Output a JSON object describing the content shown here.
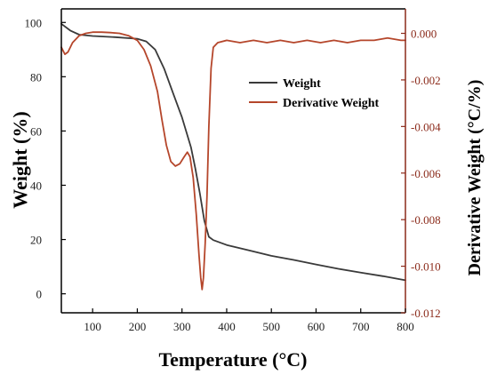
{
  "chart_data": {
    "type": "line",
    "title": "",
    "xlabel": "Temperature (°C)",
    "ylabel": "Weight (%)",
    "y2label": "Derivative Weight (°C/%)",
    "xlim": [
      30,
      800
    ],
    "ylim": [
      -7,
      105
    ],
    "y2lim": [
      -0.012,
      0.00105
    ],
    "x_ticks": [
      100,
      200,
      300,
      400,
      500,
      600,
      700,
      800
    ],
    "y_ticks": [
      0,
      20,
      40,
      60,
      80,
      100
    ],
    "y2_ticks": [
      0.0,
      -0.002,
      -0.004,
      -0.006,
      -0.008,
      -0.01,
      -0.012
    ],
    "y2_tick_labels": [
      "0.000",
      "-0.002",
      "-0.004",
      "-0.006",
      "-0.008",
      "-0.010",
      "-0.012"
    ],
    "legend_position": "center-right",
    "colors": {
      "weight": "#3a3a3a",
      "derivative": "#b5462b",
      "right_axis": "#8b2a1a",
      "axes": "#000000"
    },
    "series": [
      {
        "name": "Weight",
        "axis": "left",
        "x": [
          30,
          50,
          70,
          100,
          150,
          200,
          220,
          240,
          260,
          280,
          300,
          320,
          330,
          340,
          350,
          360,
          370,
          400,
          450,
          500,
          550,
          600,
          650,
          700,
          750,
          800
        ],
        "y": [
          99.5,
          97,
          95.5,
          95,
          94.6,
          94,
          93,
          90,
          83,
          74,
          65,
          54,
          46,
          37,
          27,
          21,
          19.8,
          18,
          16,
          14,
          12.5,
          10.8,
          9.2,
          7.8,
          6.5,
          5
        ]
      },
      {
        "name": "Derivative Weight",
        "axis": "right",
        "x": [
          30,
          38,
          45,
          55,
          70,
          85,
          100,
          120,
          140,
          160,
          180,
          200,
          215,
          230,
          245,
          255,
          265,
          275,
          285,
          295,
          305,
          312,
          318,
          325,
          332,
          338,
          342,
          345,
          348,
          352,
          356,
          360,
          365,
          370,
          380,
          400,
          430,
          460,
          490,
          520,
          550,
          580,
          610,
          640,
          670,
          700,
          730,
          760,
          790,
          800
        ],
        "y": [
          -0.0006,
          -0.0009,
          -0.0008,
          -0.0004,
          -0.0001,
          0.0,
          5e-05,
          5e-05,
          3e-05,
          0.0,
          -0.0001,
          -0.0003,
          -0.0007,
          -0.0014,
          -0.0025,
          -0.0037,
          -0.0048,
          -0.0055,
          -0.0057,
          -0.0056,
          -0.0053,
          -0.0051,
          -0.0053,
          -0.0062,
          -0.0078,
          -0.0095,
          -0.0105,
          -0.011,
          -0.0105,
          -0.009,
          -0.007,
          -0.004,
          -0.0015,
          -0.0006,
          -0.0004,
          -0.0003,
          -0.0004,
          -0.0003,
          -0.0004,
          -0.0003,
          -0.0004,
          -0.0003,
          -0.0004,
          -0.0003,
          -0.0004,
          -0.0003,
          -0.0003,
          -0.0002,
          -0.0003,
          -0.0003
        ]
      }
    ]
  }
}
